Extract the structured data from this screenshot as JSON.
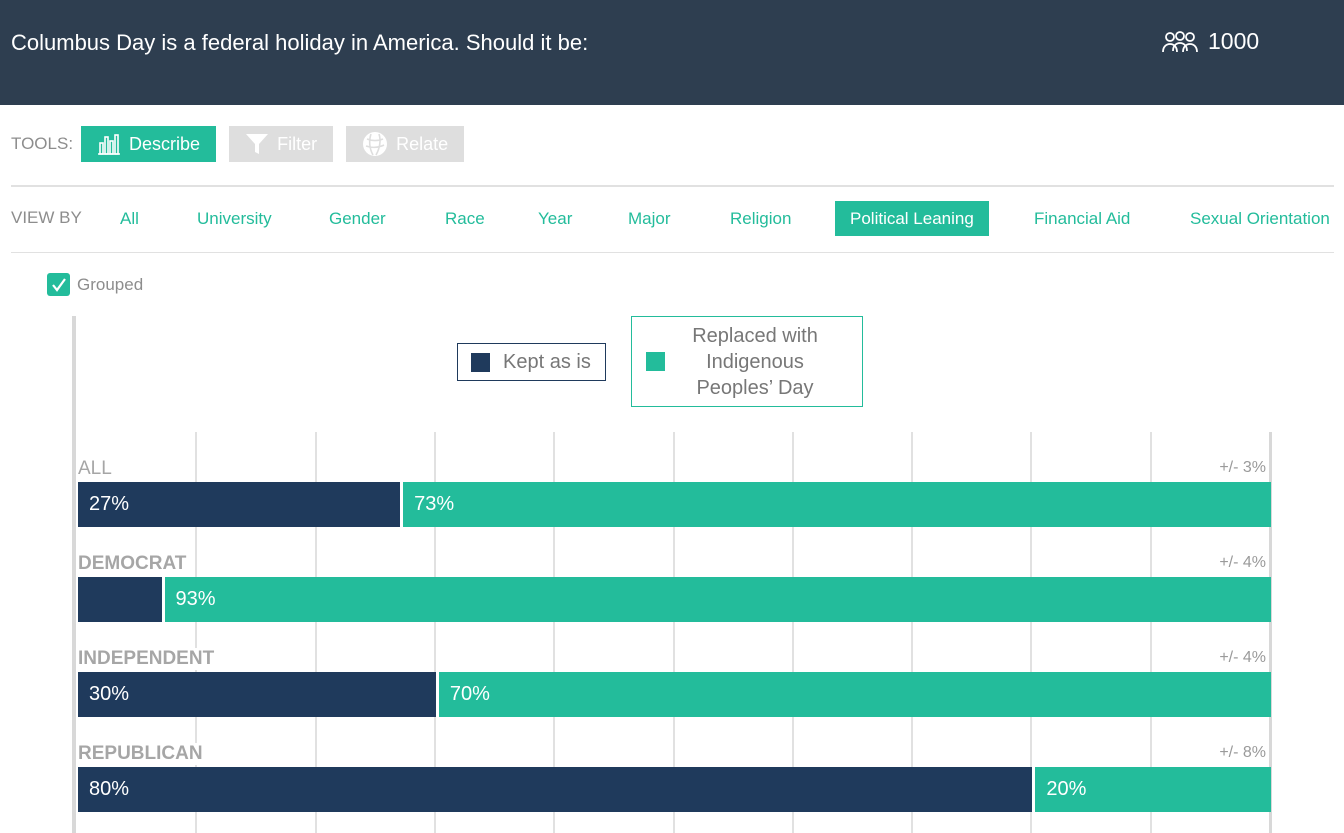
{
  "header": {
    "question": "Columbus Day is a federal holiday in America. Should it be:",
    "respondents_icon": "people-group-icon",
    "respondents": "1000"
  },
  "tools": {
    "label": "TOOLS:",
    "items": [
      {
        "label": "Describe",
        "icon": "bar-chart-icon",
        "active": true
      },
      {
        "label": "Filter",
        "icon": "funnel-icon",
        "active": false
      },
      {
        "label": "Relate",
        "icon": "relate-circle-icon",
        "active": false
      }
    ]
  },
  "view_by": {
    "label": "VIEW BY",
    "items": [
      "All",
      "University",
      "Gender",
      "Race",
      "Year",
      "Major",
      "Religion",
      "Political Leaning",
      "Financial Aid",
      "Sexual Orientation"
    ],
    "selected": "Political Leaning"
  },
  "grouped": {
    "label": "Grouped",
    "checked": true
  },
  "colors": {
    "kept": "#1f3a5c",
    "replaced": "#23bc9b",
    "header": "#2e3e50"
  },
  "chart_data": {
    "type": "bar",
    "stacked": true,
    "orientation": "horizontal",
    "categories": [
      "ALL",
      "DEMOCRAT",
      "INDEPENDENT",
      "REPUBLICAN"
    ],
    "series": [
      {
        "name": "Kept as is",
        "values": [
          27,
          7,
          30,
          80
        ],
        "labels": [
          "27%",
          "",
          "30%",
          "80%"
        ]
      },
      {
        "name": "Replaced with Indigenous Peoples’ Day",
        "values": [
          73,
          93,
          70,
          20
        ],
        "labels": [
          "73%",
          "93%",
          "70%",
          "20%"
        ]
      }
    ],
    "margin_of_error": [
      "+/- 3%",
      "+/- 4%",
      "+/- 4%",
      "+/- 8%"
    ],
    "xlim": [
      0,
      100
    ],
    "grid": true,
    "legend_position": "top-center"
  }
}
